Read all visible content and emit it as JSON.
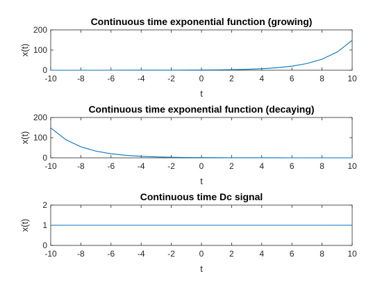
{
  "chart_data": [
    {
      "type": "line",
      "title": "Continuous time exponential function (growing)",
      "xlabel": "t",
      "ylabel": "x(t)",
      "xlim": [
        -10,
        10
      ],
      "ylim": [
        0,
        200
      ],
      "xticks": [
        -10,
        -8,
        -6,
        -4,
        -2,
        0,
        2,
        4,
        6,
        8,
        10
      ],
      "yticks": [
        0,
        100,
        200
      ],
      "color": "#0072bd",
      "x": [
        -10,
        -9,
        -8,
        -7,
        -6,
        -5,
        -4,
        -3,
        -2,
        -1,
        0,
        1,
        2,
        3,
        4,
        5,
        6,
        7,
        8,
        9,
        10
      ],
      "y": [
        0.007,
        0.011,
        0.018,
        0.03,
        0.05,
        0.082,
        0.135,
        0.223,
        0.368,
        0.607,
        1.0,
        1.65,
        2.72,
        4.48,
        7.39,
        12.2,
        20.1,
        33.1,
        54.6,
        90.0,
        148.4
      ]
    },
    {
      "type": "line",
      "title": "Continuous time exponential function (decaying)",
      "xlabel": "t",
      "ylabel": "x(t)",
      "xlim": [
        -10,
        10
      ],
      "ylim": [
        0,
        200
      ],
      "xticks": [
        -10,
        -8,
        -6,
        -4,
        -2,
        0,
        2,
        4,
        6,
        8,
        10
      ],
      "yticks": [
        0,
        100,
        200
      ],
      "color": "#0072bd",
      "x": [
        -10,
        -9,
        -8,
        -7,
        -6,
        -5,
        -4,
        -3,
        -2,
        -1,
        0,
        1,
        2,
        3,
        4,
        5,
        6,
        7,
        8,
        9,
        10
      ],
      "y": [
        148.4,
        90.0,
        54.6,
        33.1,
        20.1,
        12.2,
        7.39,
        4.48,
        2.72,
        1.65,
        1.0,
        0.607,
        0.368,
        0.223,
        0.135,
        0.082,
        0.05,
        0.03,
        0.018,
        0.011,
        0.007
      ]
    },
    {
      "type": "line",
      "title": "Continuous time Dc signal",
      "xlabel": "t",
      "ylabel": "x(t)",
      "xlim": [
        -10,
        10
      ],
      "ylim": [
        0,
        2
      ],
      "xticks": [
        -10,
        -8,
        -6,
        -4,
        -2,
        0,
        2,
        4,
        6,
        8,
        10
      ],
      "yticks": [
        0,
        1,
        2
      ],
      "color": "#0072bd",
      "x": [
        -10,
        10
      ],
      "y": [
        1,
        1
      ]
    }
  ]
}
